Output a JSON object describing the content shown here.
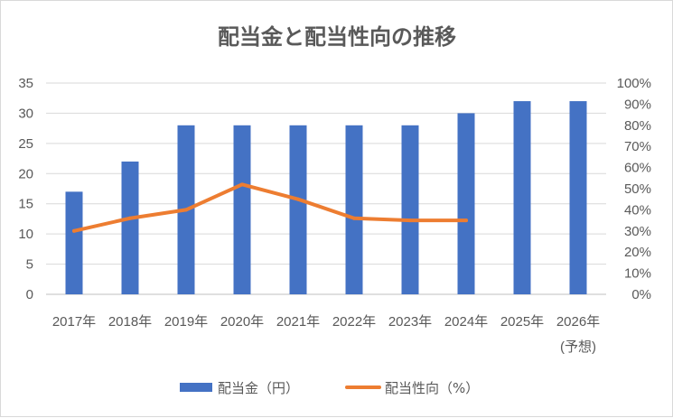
{
  "chart_data": {
    "type": "bar",
    "title": "配当金と配当性向の推移",
    "categories": [
      "2017年",
      "2018年",
      "2019年",
      "2020年",
      "2021年",
      "2022年",
      "2023年",
      "2024年",
      "2025年",
      "2026年"
    ],
    "category_sublabels": [
      "",
      "",
      "",
      "",
      "",
      "",
      "",
      "",
      "",
      "(予想)"
    ],
    "series": [
      {
        "name": "配当金（円）",
        "type": "bar",
        "axis": "left",
        "color": "#4472c4",
        "values": [
          17,
          22,
          28,
          28,
          28,
          28,
          28,
          30,
          32,
          32
        ]
      },
      {
        "name": "配当性向（%）",
        "type": "line",
        "axis": "right",
        "color": "#ed7d31",
        "values": [
          30,
          36,
          40,
          52,
          45,
          36,
          35,
          35,
          null,
          null
        ]
      }
    ],
    "y_left": {
      "ylim": [
        0,
        35
      ],
      "ticks": [
        "0",
        "5",
        "10",
        "15",
        "20",
        "25",
        "30",
        "35"
      ]
    },
    "y_right": {
      "ylim": [
        0,
        100
      ],
      "ticks": [
        "0%",
        "10%",
        "20%",
        "30%",
        "40%",
        "50%",
        "60%",
        "70%",
        "80%",
        "90%",
        "100%"
      ]
    },
    "grid": true,
    "legend": "bottom"
  }
}
